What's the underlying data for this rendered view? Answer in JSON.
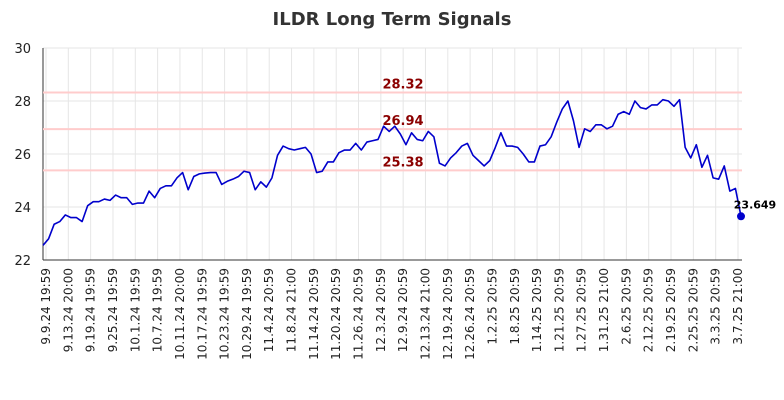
{
  "chart_data": {
    "type": "line",
    "title": "ILDR Long Term Signals",
    "xlabel": "",
    "ylabel": "",
    "ylim": [
      22,
      30
    ],
    "yticks": [
      "22",
      "24",
      "26",
      "28",
      "30"
    ],
    "grid": true,
    "xtick_labels": [
      "9.9.24 19:59",
      "9.13.24 20:00",
      "9.19.24 19:59",
      "9.25.24 19:59",
      "10.1.24 19:59",
      "10.7.24 19:59",
      "10.11.24 20:00",
      "10.17.24 19:59",
      "10.23.24 19:59",
      "10.29.24 19:59",
      "11.4.24 20:59",
      "11.8.24 21:00",
      "11.14.24 20:59",
      "11.20.24 20:59",
      "11.26.24 20:59",
      "12.3.24 20:59",
      "12.9.24 20:59",
      "12.13.24 21:00",
      "12.19.24 20:59",
      "12.26.24 20:59",
      "1.2.25 20:59",
      "1.8.25 20:59",
      "1.14.25 20:59",
      "1.21.25 20:59",
      "1.27.25 20:59",
      "1.31.25 21:00",
      "2.6.25 20:59",
      "2.12.25 20:59",
      "2.19.25 20:59",
      "2.25.25 20:59",
      "3.3.25 20:59",
      "3.7.25 21:00"
    ],
    "reference_lines": [
      {
        "value": 28.32,
        "label": "28.32",
        "color": "#ffcccc"
      },
      {
        "value": 26.94,
        "label": "26.94",
        "color": "#ffcccc"
      },
      {
        "value": 25.38,
        "label": "25.38",
        "color": "#ffcccc"
      }
    ],
    "reference_label_color": "#8b0000",
    "series": [
      {
        "color": "#0000cc",
        "values": [
          22.55,
          22.8,
          23.35,
          23.45,
          23.7,
          23.6,
          23.6,
          23.45,
          24.05,
          24.2,
          24.2,
          24.3,
          24.25,
          24.45,
          24.35,
          24.35,
          24.1,
          24.15,
          24.15,
          24.6,
          24.35,
          24.7,
          24.8,
          24.8,
          25.1,
          25.3,
          24.65,
          25.15,
          25.25,
          25.28,
          25.3,
          25.3,
          24.85,
          24.97,
          25.05,
          25.15,
          25.35,
          25.3,
          24.65,
          24.95,
          24.75,
          25.1,
          25.95,
          26.3,
          26.2,
          26.15,
          26.2,
          26.25,
          26.0,
          25.3,
          25.35,
          25.7,
          25.7,
          26.05,
          26.15,
          26.15,
          26.4,
          26.15,
          26.45,
          26.5,
          26.55,
          27.05,
          26.85,
          27.05,
          26.75,
          26.35,
          26.8,
          26.55,
          26.5,
          26.85,
          26.65,
          25.65,
          25.55,
          25.85,
          26.05,
          26.3,
          26.4,
          25.95,
          25.75,
          25.55,
          25.75,
          26.25,
          26.8,
          26.3,
          26.3,
          26.25,
          26.0,
          25.7,
          25.7,
          26.3,
          26.35,
          26.65,
          27.2,
          27.7,
          28.0,
          27.25,
          26.25,
          26.95,
          26.85,
          27.1,
          27.1,
          26.95,
          27.05,
          27.5,
          27.6,
          27.5,
          28.0,
          27.75,
          27.7,
          27.85,
          27.85,
          28.05,
          28.0,
          27.8,
          28.05,
          26.25,
          25.85,
          26.35,
          25.5,
          25.95,
          25.1,
          25.05,
          25.55,
          24.6,
          24.7,
          23.649
        ]
      }
    ],
    "last_value_label": "23.649",
    "last_point_color": "#0000cc"
  }
}
